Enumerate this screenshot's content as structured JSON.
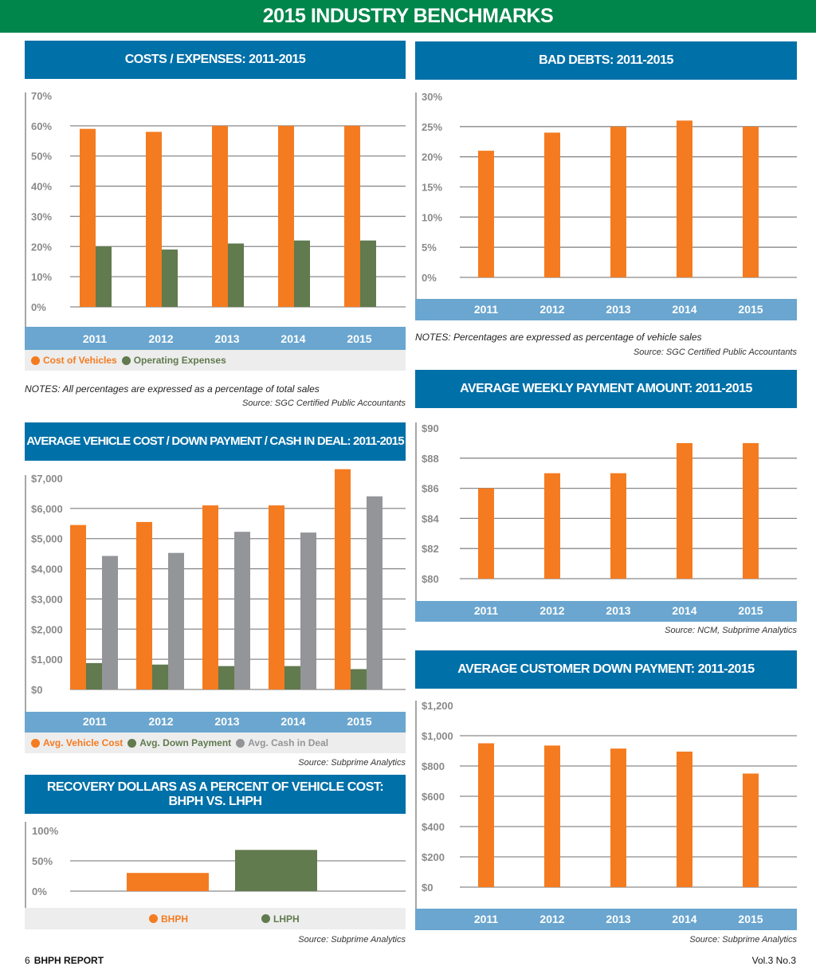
{
  "banner": {
    "title": "2015 INDUSTRY BENCHMARKS"
  },
  "colors": {
    "orange": "#f47b20",
    "green": "#617a4e",
    "gray": "#939598",
    "blue_header": "#0070a8",
    "axis_bar": "#6aa6cf",
    "banner_green": "#00854a"
  },
  "panels": {
    "costs": {
      "title": "COSTS / EXPENSES: 2011-2015",
      "legend": [
        "Cost of Vehicles",
        "Operating Expenses"
      ],
      "note": "NOTES: All percentages are expressed as a percentage of total sales",
      "source": "Source: SGC Certified Public Accountants"
    },
    "bad_debts": {
      "title": "BAD DEBTS: 2011-2015",
      "note": "NOTES: Percentages are expressed as percentage of vehicle sales",
      "source": "Source: SGC Certified Public Accountants"
    },
    "weekly": {
      "title": "AVERAGE WEEKLY PAYMENT AMOUNT: 2011-2015",
      "source": "Source: NCM, Subprime Analytics"
    },
    "vehicle": {
      "title": "AVERAGE VEHICLE COST / DOWN PAYMENT / CASH IN DEAL: 2011-2015",
      "legend": [
        "Avg. Vehicle Cost",
        "Avg. Down Payment",
        "Avg. Cash in Deal"
      ],
      "source": "Source: Subprime Analytics"
    },
    "down": {
      "title": "AVERAGE CUSTOMER DOWN PAYMENT: 2011-2015",
      "source": "Source: Subprime Analytics"
    },
    "recovery": {
      "title_line1": "RECOVERY DOLLARS AS A PERCENT OF VEHICLE COST:",
      "title_line2": "BHPH VS. LHPH",
      "legend": [
        "BHPH",
        "LHPH"
      ],
      "source": "Source: Subprime Analytics"
    }
  },
  "footer": {
    "page": "6",
    "publication": "BHPH REPORT",
    "issue": "Vol.3 No.3"
  },
  "chart_data": [
    {
      "id": "costs",
      "type": "bar",
      "title": "COSTS / EXPENSES: 2011-2015",
      "categories": [
        "2011",
        "2012",
        "2013",
        "2014",
        "2015"
      ],
      "series": [
        {
          "name": "Cost of Vehicles",
          "color": "#f47b20",
          "values": [
            59,
            58,
            60,
            60,
            60
          ]
        },
        {
          "name": "Operating Expenses",
          "color": "#617a4e",
          "values": [
            20,
            19,
            21,
            22,
            22
          ]
        }
      ],
      "ylim": [
        0,
        70
      ],
      "yticks": [
        0,
        10,
        20,
        30,
        40,
        50,
        60,
        70
      ],
      "ytick_labels": [
        "0%",
        "10%",
        "20%",
        "30%",
        "40%",
        "50%",
        "60%",
        "70%"
      ],
      "xlabel": "",
      "ylabel": "",
      "grid": true,
      "legend": "bottom-left"
    },
    {
      "id": "bad_debts",
      "type": "bar",
      "title": "BAD DEBTS: 2011-2015",
      "categories": [
        "2011",
        "2012",
        "2013",
        "2014",
        "2015"
      ],
      "series": [
        {
          "name": "Bad Debts",
          "color": "#f47b20",
          "values": [
            21,
            24,
            25,
            26,
            25
          ]
        }
      ],
      "ylim": [
        0,
        30
      ],
      "yticks": [
        0,
        5,
        10,
        15,
        20,
        25,
        30
      ],
      "ytick_labels": [
        "0%",
        "5%",
        "10%",
        "15%",
        "20%",
        "25%",
        "30%"
      ],
      "xlabel": "",
      "ylabel": "",
      "grid": true
    },
    {
      "id": "weekly",
      "type": "bar",
      "title": "AVERAGE WEEKLY PAYMENT AMOUNT: 2011-2015",
      "categories": [
        "2011",
        "2012",
        "2013",
        "2014",
        "2015"
      ],
      "series": [
        {
          "name": "Avg. Weekly Payment",
          "color": "#f47b20",
          "values": [
            86,
            87,
            87,
            89,
            89
          ]
        }
      ],
      "ylim": [
        80,
        90
      ],
      "yticks": [
        80,
        82,
        84,
        86,
        88,
        90
      ],
      "ytick_labels": [
        "$80",
        "$82",
        "$84",
        "$86",
        "$88",
        "$90"
      ],
      "xlabel": "",
      "ylabel": "",
      "grid": true
    },
    {
      "id": "vehicle",
      "type": "bar",
      "title": "AVERAGE VEHICLE COST / DOWN PAYMENT / CASH IN DEAL: 2011-2015",
      "categories": [
        "2011",
        "2012",
        "2013",
        "2014",
        "2015"
      ],
      "series": [
        {
          "name": "Avg. Vehicle Cost",
          "color": "#f47b20",
          "values": [
            5450,
            5550,
            6100,
            6100,
            7300
          ]
        },
        {
          "name": "Avg. Down Payment",
          "color": "#617a4e",
          "values": [
            875,
            825,
            775,
            775,
            675
          ]
        },
        {
          "name": "Avg. Cash in Deal",
          "color": "#939598",
          "values": [
            4425,
            4525,
            5225,
            5200,
            6400
          ]
        }
      ],
      "ylim": [
        0,
        7000
      ],
      "yticks": [
        0,
        1000,
        2000,
        3000,
        4000,
        5000,
        6000,
        7000
      ],
      "ytick_labels": [
        "$0",
        "$1,000",
        "$2,000",
        "$3,000",
        "$4,000",
        "$5,000",
        "$6,000",
        "$7,000"
      ],
      "xlabel": "",
      "ylabel": "",
      "grid": true,
      "legend": "bottom-left"
    },
    {
      "id": "down",
      "type": "bar",
      "title": "AVERAGE CUSTOMER DOWN PAYMENT: 2011-2015",
      "categories": [
        "2011",
        "2012",
        "2013",
        "2014",
        "2015"
      ],
      "series": [
        {
          "name": "Avg. Customer Down Payment",
          "color": "#f47b20",
          "values": [
            950,
            935,
            915,
            895,
            750
          ]
        }
      ],
      "ylim": [
        0,
        1200
      ],
      "yticks": [
        0,
        200,
        400,
        600,
        800,
        1000,
        1200
      ],
      "ytick_labels": [
        "$0",
        "$200",
        "$400",
        "$600",
        "$800",
        "$1,000",
        "$1,200"
      ],
      "xlabel": "",
      "ylabel": "",
      "grid": true
    },
    {
      "id": "recovery",
      "type": "bar",
      "title": "RECOVERY DOLLARS AS A PERCENT OF VEHICLE COST: BHPH VS. LHPH",
      "categories": [
        "BHPH",
        "LHPH"
      ],
      "series": [
        {
          "name": "Recovery %",
          "colors": [
            "#f47b20",
            "#617a4e"
          ],
          "values": [
            30,
            68
          ]
        }
      ],
      "ylim": [
        0,
        100
      ],
      "yticks": [
        0,
        50,
        100
      ],
      "ytick_labels": [
        "0%",
        "50%",
        "100%"
      ],
      "xlabel": "",
      "ylabel": "",
      "grid": true,
      "legend": "bottom-center"
    }
  ]
}
